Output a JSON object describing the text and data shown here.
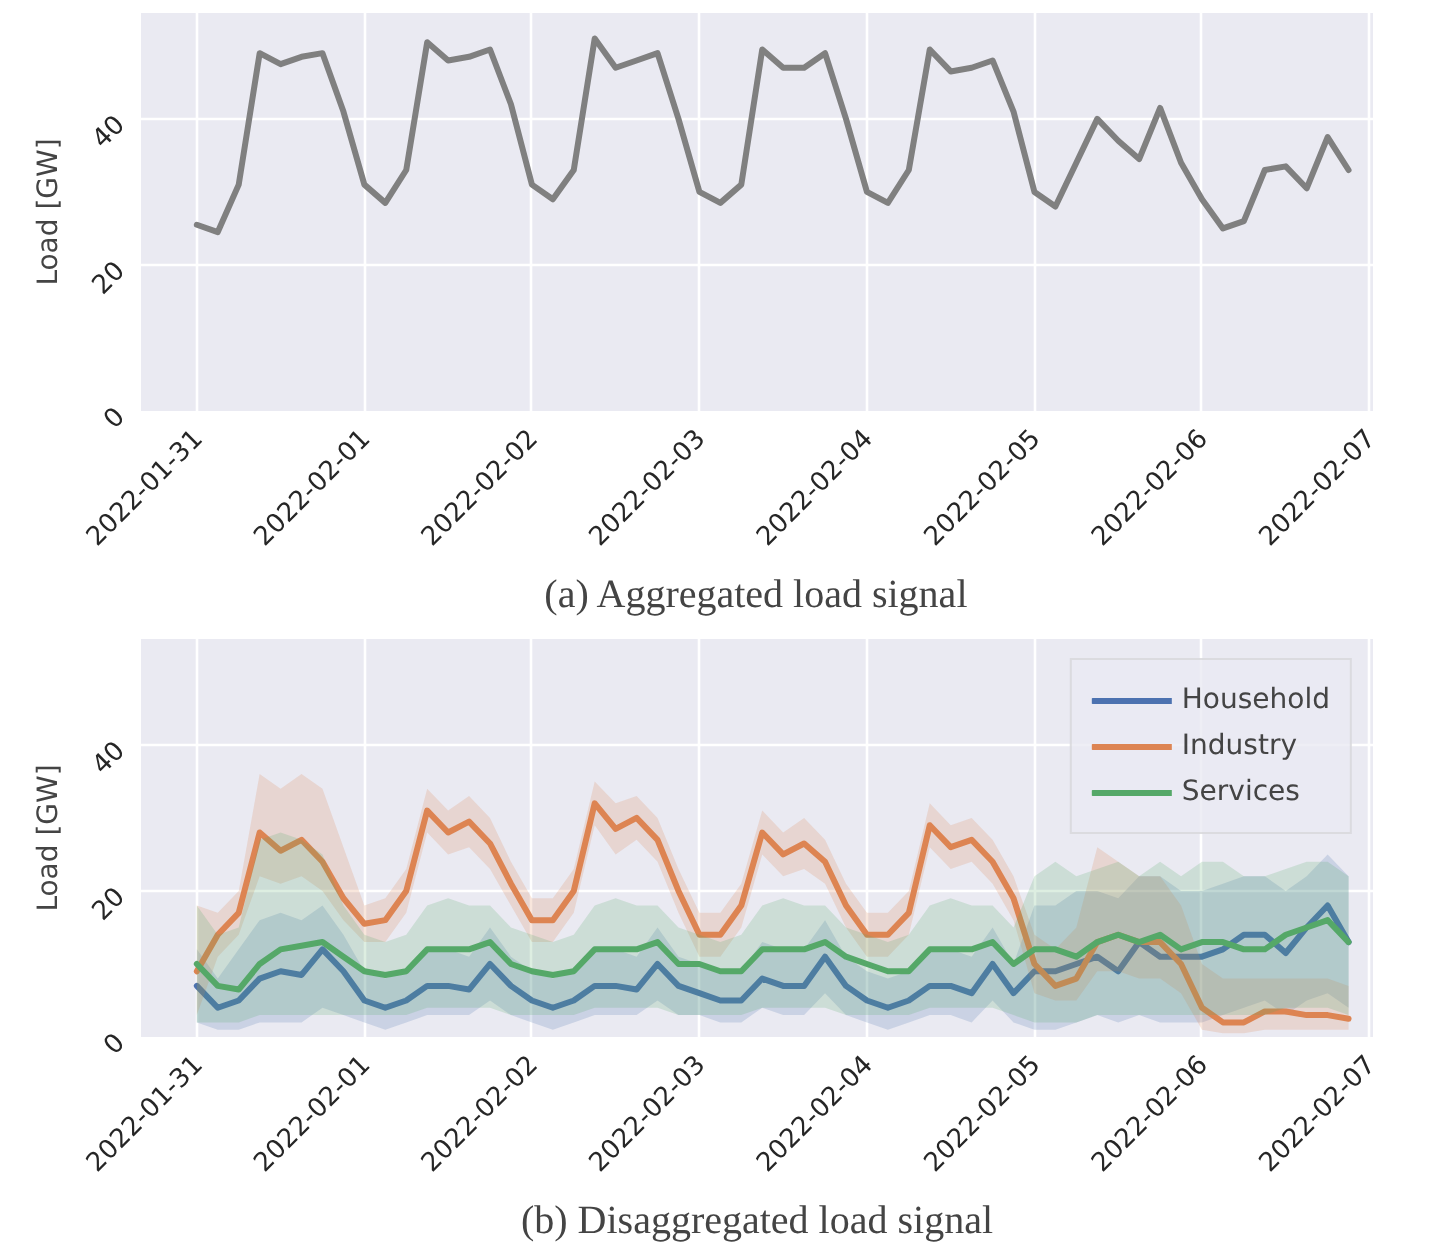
{
  "chart_data": [
    {
      "type": "line",
      "title": "(a) Aggregated load signal",
      "ylabel": "Load [GW]",
      "grid": true,
      "legend": false,
      "xlim": [
        "2022-01-30T16:00",
        "2022-02-07T00:30"
      ],
      "ylim": [
        0,
        54.5
      ],
      "yticks": [
        0,
        20,
        40
      ],
      "xticks": [
        {
          "value": "2022-01-31",
          "label": "2022-01-31"
        },
        {
          "value": "2022-02-01",
          "label": "2022-02-01"
        },
        {
          "value": "2022-02-02",
          "label": "2022-02-02"
        },
        {
          "value": "2022-02-03",
          "label": "2022-02-03"
        },
        {
          "value": "2022-02-04",
          "label": "2022-02-04"
        },
        {
          "value": "2022-02-05",
          "label": "2022-02-05"
        },
        {
          "value": "2022-02-06",
          "label": "2022-02-06"
        },
        {
          "value": "2022-02-07",
          "label": "2022-02-07"
        }
      ],
      "x": [
        "2022-01-31T00:00",
        "2022-01-31T03:00",
        "2022-01-31T06:00",
        "2022-01-31T09:00",
        "2022-01-31T12:00",
        "2022-01-31T15:00",
        "2022-01-31T18:00",
        "2022-01-31T21:00",
        "2022-02-01T00:00",
        "2022-02-01T03:00",
        "2022-02-01T06:00",
        "2022-02-01T09:00",
        "2022-02-01T12:00",
        "2022-02-01T15:00",
        "2022-02-01T18:00",
        "2022-02-01T21:00",
        "2022-02-02T00:00",
        "2022-02-02T03:00",
        "2022-02-02T06:00",
        "2022-02-02T09:00",
        "2022-02-02T12:00",
        "2022-02-02T15:00",
        "2022-02-02T18:00",
        "2022-02-02T21:00",
        "2022-02-03T00:00",
        "2022-02-03T03:00",
        "2022-02-03T06:00",
        "2022-02-03T09:00",
        "2022-02-03T12:00",
        "2022-02-03T15:00",
        "2022-02-03T18:00",
        "2022-02-03T21:00",
        "2022-02-04T00:00",
        "2022-02-04T03:00",
        "2022-02-04T06:00",
        "2022-02-04T09:00",
        "2022-02-04T12:00",
        "2022-02-04T15:00",
        "2022-02-04T18:00",
        "2022-02-04T21:00",
        "2022-02-05T00:00",
        "2022-02-05T03:00",
        "2022-02-05T06:00",
        "2022-02-05T09:00",
        "2022-02-05T12:00",
        "2022-02-05T15:00",
        "2022-02-05T18:00",
        "2022-02-05T21:00",
        "2022-02-06T00:00",
        "2022-02-06T03:00",
        "2022-02-06T06:00",
        "2022-02-06T09:00",
        "2022-02-06T12:00",
        "2022-02-06T15:00",
        "2022-02-06T18:00",
        "2022-02-06T21:00"
      ],
      "series": [
        {
          "color": "#808080",
          "values": [
            25.5,
            24.5,
            31,
            49,
            47.5,
            48.5,
            49,
            41,
            31,
            28.5,
            33,
            50.5,
            48,
            48.5,
            49.5,
            42,
            31,
            29,
            33,
            51,
            47,
            48,
            49,
            40,
            30,
            28.5,
            31,
            49.5,
            47,
            47,
            49,
            40,
            30,
            28.5,
            33,
            49.5,
            46.5,
            47,
            48,
            41,
            30,
            28,
            34,
            40,
            37,
            34.5,
            41.5,
            34,
            29,
            25,
            26,
            33,
            33.5,
            30.5,
            37.5,
            33
          ]
        }
      ]
    },
    {
      "type": "line",
      "title": "(b) Disaggregated load signal",
      "ylabel": "Load [GW]",
      "grid": true,
      "legend": "top right",
      "xlim": [
        "2022-01-30T16:00",
        "2022-02-07T00:30"
      ],
      "ylim": [
        0,
        54.5
      ],
      "yticks": [
        0,
        20,
        40
      ],
      "xticks": [
        {
          "value": "2022-01-31",
          "label": "2022-01-31"
        },
        {
          "value": "2022-02-01",
          "label": "2022-02-01"
        },
        {
          "value": "2022-02-02",
          "label": "2022-02-02"
        },
        {
          "value": "2022-02-03",
          "label": "2022-02-03"
        },
        {
          "value": "2022-02-04",
          "label": "2022-02-04"
        },
        {
          "value": "2022-02-05",
          "label": "2022-02-05"
        },
        {
          "value": "2022-02-06",
          "label": "2022-02-06"
        },
        {
          "value": "2022-02-07",
          "label": "2022-02-07"
        }
      ],
      "x": [
        "2022-01-31T00:00",
        "2022-01-31T03:00",
        "2022-01-31T06:00",
        "2022-01-31T09:00",
        "2022-01-31T12:00",
        "2022-01-31T15:00",
        "2022-01-31T18:00",
        "2022-01-31T21:00",
        "2022-02-01T00:00",
        "2022-02-01T03:00",
        "2022-02-01T06:00",
        "2022-02-01T09:00",
        "2022-02-01T12:00",
        "2022-02-01T15:00",
        "2022-02-01T18:00",
        "2022-02-01T21:00",
        "2022-02-02T00:00",
        "2022-02-02T03:00",
        "2022-02-02T06:00",
        "2022-02-02T09:00",
        "2022-02-02T12:00",
        "2022-02-02T15:00",
        "2022-02-02T18:00",
        "2022-02-02T21:00",
        "2022-02-03T00:00",
        "2022-02-03T03:00",
        "2022-02-03T06:00",
        "2022-02-03T09:00",
        "2022-02-03T12:00",
        "2022-02-03T15:00",
        "2022-02-03T18:00",
        "2022-02-03T21:00",
        "2022-02-04T00:00",
        "2022-02-04T03:00",
        "2022-02-04T06:00",
        "2022-02-04T09:00",
        "2022-02-04T12:00",
        "2022-02-04T15:00",
        "2022-02-04T18:00",
        "2022-02-04T21:00",
        "2022-02-05T00:00",
        "2022-02-05T03:00",
        "2022-02-05T06:00",
        "2022-02-05T09:00",
        "2022-02-05T12:00",
        "2022-02-05T15:00",
        "2022-02-05T18:00",
        "2022-02-05T21:00",
        "2022-02-06T00:00",
        "2022-02-06T03:00",
        "2022-02-06T06:00",
        "2022-02-06T09:00",
        "2022-02-06T12:00",
        "2022-02-06T15:00",
        "2022-02-06T18:00",
        "2022-02-06T21:00"
      ],
      "series": [
        {
          "name": "Household",
          "color": "#4c72b0",
          "values": [
            7,
            4,
            5,
            8,
            9,
            8.5,
            12,
            9,
            5,
            4,
            5,
            7,
            7,
            6.5,
            10,
            7,
            5,
            4,
            5,
            7,
            7,
            6.5,
            10,
            7,
            6,
            5,
            5,
            8,
            7,
            7,
            11,
            7,
            5,
            4,
            5,
            7,
            7,
            6,
            10,
            6,
            9,
            9,
            10,
            11,
            9,
            13,
            11,
            11,
            11,
            12,
            14,
            14,
            11.5,
            15,
            18,
            13
          ],
          "lower": [
            2,
            1,
            1,
            2,
            2,
            2,
            4,
            3,
            2,
            1,
            2,
            3,
            3,
            3,
            5,
            3,
            2,
            1,
            2,
            3,
            3,
            3,
            5,
            3,
            3,
            2,
            2,
            4,
            3,
            3,
            6,
            3,
            2,
            1,
            2,
            3,
            3,
            2,
            5,
            2,
            1,
            1,
            2,
            3,
            2,
            3,
            2,
            2,
            2,
            3,
            4,
            5,
            3,
            5,
            6,
            4
          ],
          "upper": [
            12,
            8,
            12,
            16,
            17,
            16,
            18,
            14,
            9,
            8,
            9,
            12,
            12,
            11,
            15,
            11,
            9,
            8,
            9,
            12,
            12,
            11,
            15,
            11,
            10,
            9,
            9,
            13,
            12,
            12,
            16,
            11,
            9,
            8,
            9,
            12,
            12,
            11,
            15,
            10,
            18,
            18,
            20,
            20,
            19,
            22,
            22,
            20,
            20,
            21,
            22,
            22,
            20,
            22,
            25,
            22
          ]
        },
        {
          "name": "Industry",
          "color": "#dd8452",
          "values": [
            9,
            14,
            17,
            28,
            25.5,
            27,
            24,
            19,
            15.5,
            16,
            20,
            31,
            28,
            29.5,
            26.5,
            21,
            16,
            16,
            20,
            32,
            28.5,
            30,
            27,
            20,
            14,
            14,
            18,
            28,
            25,
            26.5,
            24,
            18,
            14,
            14,
            17,
            29,
            26,
            27,
            24,
            19,
            10,
            7,
            8,
            13,
            14,
            13,
            13,
            10,
            4,
            2,
            2,
            3.5,
            3.5,
            3,
            3,
            2.5
          ],
          "lower": [
            3,
            11,
            14,
            22,
            21,
            22,
            20,
            16,
            13,
            13,
            17,
            28,
            25,
            26,
            23,
            18,
            13,
            13,
            17,
            29,
            25,
            27,
            24,
            17,
            11,
            11,
            15,
            25,
            22,
            23,
            21,
            15,
            11,
            11,
            14,
            26,
            23,
            24,
            21,
            16,
            6,
            5,
            5,
            9,
            9,
            8,
            8,
            6,
            1,
            0.5,
            0.5,
            1,
            1,
            1,
            1,
            1
          ],
          "upper": [
            18,
            17,
            20,
            36,
            34,
            36,
            34,
            26,
            18,
            19,
            23,
            34,
            31,
            33,
            30,
            24,
            19,
            19,
            23,
            35,
            32,
            33,
            30,
            23,
            17,
            17,
            21,
            31,
            28,
            30,
            27,
            21,
            17,
            17,
            20,
            32,
            29,
            30,
            27,
            22,
            14,
            12,
            15,
            26,
            24,
            22,
            22,
            18,
            10,
            8,
            8,
            8,
            8,
            8,
            8,
            7
          ]
        },
        {
          "name": "Services",
          "color": "#55a868",
          "values": [
            10,
            7,
            6.5,
            10,
            12,
            12.5,
            13,
            11,
            9,
            8.5,
            9,
            12,
            12,
            12,
            13,
            10,
            9,
            8.5,
            9,
            12,
            12,
            12,
            13,
            10,
            10,
            9,
            9,
            12,
            12,
            12,
            13,
            11,
            10,
            9,
            9,
            12,
            12,
            12,
            13,
            10,
            12,
            12,
            11,
            13,
            14,
            13,
            14,
            12,
            13,
            13,
            12,
            12,
            14,
            15,
            16,
            13
          ],
          "lower": [
            2,
            2,
            2,
            3,
            3,
            3,
            3,
            3,
            3,
            3,
            3,
            4,
            4,
            4,
            4,
            3,
            3,
            3,
            3,
            4,
            4,
            4,
            4,
            3,
            3,
            3,
            3,
            4,
            4,
            4,
            4,
            3,
            3,
            3,
            3,
            4,
            4,
            4,
            4,
            3,
            2,
            2,
            2,
            3,
            3,
            3,
            3,
            3,
            3,
            3,
            3,
            3,
            4,
            4,
            4,
            3
          ],
          "upper": [
            18,
            14,
            15,
            27,
            28,
            27,
            25,
            18,
            14,
            13,
            14,
            18,
            19,
            18,
            18,
            15,
            14,
            13,
            14,
            18,
            19,
            18,
            18,
            15,
            14,
            13,
            14,
            18,
            19,
            18,
            18,
            15,
            14,
            13,
            14,
            18,
            19,
            18,
            18,
            15,
            22,
            24,
            22,
            23,
            24,
            22,
            24,
            22,
            24,
            24,
            22,
            22,
            23,
            24,
            24,
            22
          ]
        }
      ]
    }
  ]
}
